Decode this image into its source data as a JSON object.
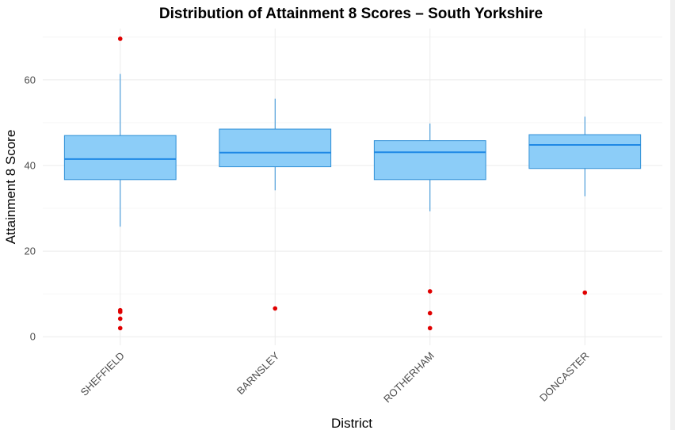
{
  "chart_data": {
    "type": "box",
    "title": "Distribution of Attainment 8 Scores – South Yorkshire",
    "xlabel": "District",
    "ylabel": "Attainment 8 Score",
    "ylim": [
      -2,
      72
    ],
    "yticks": [
      0,
      20,
      40,
      60
    ],
    "grid": true,
    "colors": {
      "box_fill": "#8ccdf8",
      "box_stroke": "#2f8fd6",
      "median": "#1e88e5",
      "outlier": "#e00000"
    },
    "categories": [
      "SHEFFIELD",
      "BARNSLEY",
      "ROTHERHAM",
      "DONCASTER"
    ],
    "series": [
      {
        "category": "SHEFFIELD",
        "whisker_low": 25.7,
        "q1": 36.7,
        "median": 41.5,
        "q3": 47.0,
        "whisker_high": 61.4,
        "outliers": [
          69.6,
          6.2,
          5.8,
          4.2,
          2.0
        ]
      },
      {
        "category": "BARNSLEY",
        "whisker_low": 34.2,
        "q1": 39.7,
        "median": 43.0,
        "q3": 48.5,
        "whisker_high": 55.6,
        "outliers": [
          6.6
        ]
      },
      {
        "category": "ROTHERHAM",
        "whisker_low": 29.3,
        "q1": 36.7,
        "median": 43.1,
        "q3": 45.8,
        "whisker_high": 49.8,
        "outliers": [
          10.6,
          5.5,
          2.0
        ]
      },
      {
        "category": "DONCASTER",
        "whisker_low": 32.8,
        "q1": 39.3,
        "median": 44.8,
        "q3": 47.2,
        "whisker_high": 51.4,
        "outliers": [
          10.3
        ]
      }
    ]
  }
}
